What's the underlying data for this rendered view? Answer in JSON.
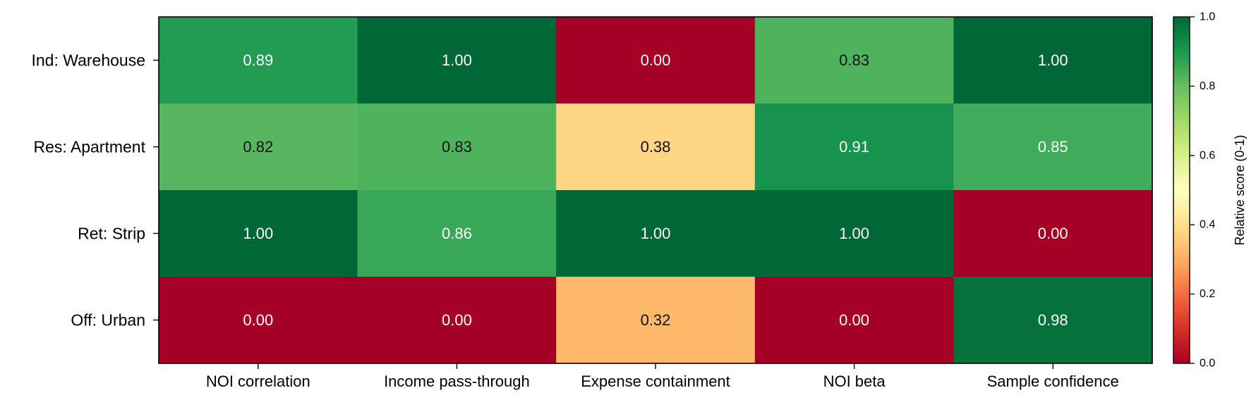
{
  "chart_data": {
    "type": "heatmap",
    "title": "",
    "xlabel": "",
    "ylabel": "",
    "columns": [
      "NOI correlation",
      "Income pass-through",
      "Expense containment",
      "NOI beta",
      "Sample confidence"
    ],
    "rows": [
      "Ind: Warehouse",
      "Res: Apartment",
      "Ret: Strip",
      "Off: Urban"
    ],
    "values": [
      [
        0.89,
        1.0,
        0.0,
        0.83,
        1.0
      ],
      [
        0.82,
        0.83,
        0.38,
        0.91,
        0.85
      ],
      [
        1.0,
        0.86,
        1.0,
        1.0,
        0.0
      ],
      [
        0.0,
        0.0,
        0.32,
        0.0,
        0.98
      ]
    ],
    "value_labels": [
      [
        "0.89",
        "1.00",
        "0.00",
        "0.83",
        "1.00"
      ],
      [
        "0.82",
        "0.83",
        "0.38",
        "0.91",
        "0.85"
      ],
      [
        "1.00",
        "0.86",
        "1.00",
        "1.00",
        "0.00"
      ],
      [
        "0.00",
        "0.00",
        "0.32",
        "0.00",
        "0.98"
      ]
    ],
    "colormap": "RdYlGn",
    "vmin": 0,
    "vmax": 1,
    "colorbar": {
      "label": "Relative score (0-1)",
      "ticks": [
        0.0,
        0.2,
        0.4,
        0.6,
        0.8,
        1.0
      ],
      "tick_labels": [
        "0.0",
        "0.2",
        "0.4",
        "0.6",
        "0.8",
        "1.0"
      ]
    },
    "grid": false,
    "legend": "colorbar-right"
  }
}
